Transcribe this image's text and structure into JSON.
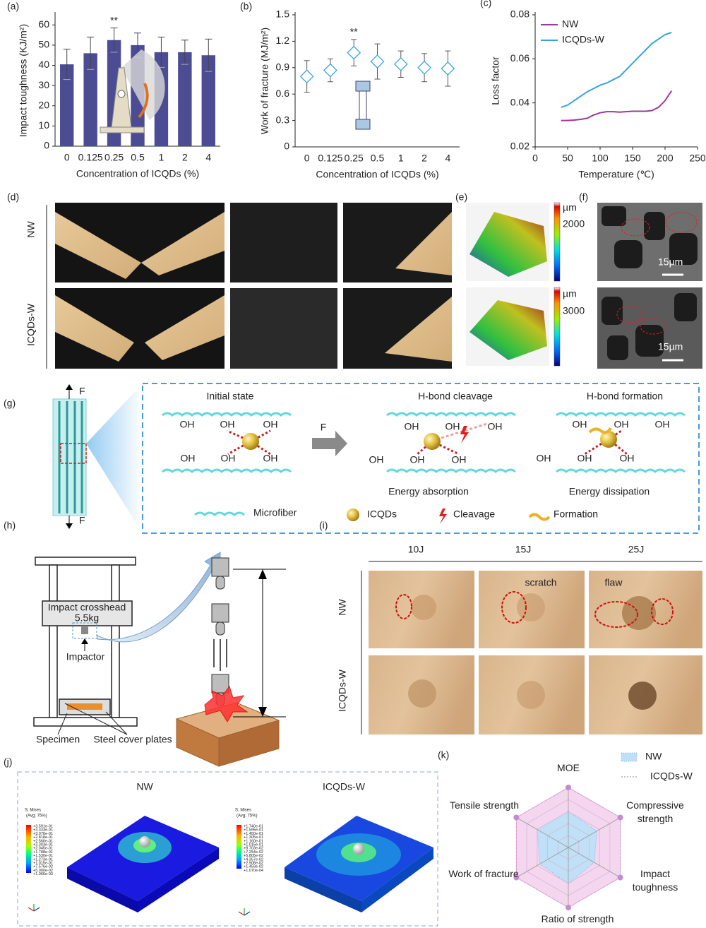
{
  "chart_data": [
    {
      "type": "bar",
      "panel": "(a)",
      "xlabel": "Concentration of ICQDs (%)",
      "ylabel": "Impact toughness (KJ/m²)",
      "categories": [
        "0",
        "0.125",
        "0.25",
        "0.5",
        "1",
        "2",
        "4"
      ],
      "values": [
        40.5,
        46,
        52.5,
        50,
        46.5,
        46.5,
        45
      ],
      "errors": [
        7.5,
        8,
        6,
        6,
        7.5,
        6,
        8
      ],
      "color": "#4b4c94",
      "ylim": [
        0,
        65
      ],
      "yticks": [
        0,
        10,
        20,
        30,
        40,
        50,
        60
      ],
      "annotations": [
        {
          "text": "**",
          "x": "0.25"
        }
      ]
    },
    {
      "type": "point",
      "panel": "(b)",
      "xlabel": "Concentration of ICQDs (%)",
      "ylabel": "Work of fracture (MJ/m²)",
      "categories": [
        "0",
        "0.125",
        "0.25",
        "0.5",
        "1",
        "2",
        "4"
      ],
      "values": [
        0.8,
        0.87,
        1.07,
        0.97,
        0.94,
        0.9,
        0.89
      ],
      "errors": [
        0.18,
        0.13,
        0.15,
        0.2,
        0.15,
        0.16,
        0.2
      ],
      "color": "#3aa6d8",
      "ylim": [
        0,
        1.5
      ],
      "yticks": [
        0,
        0.3,
        0.6,
        0.9,
        1.2,
        1.5
      ],
      "annotations": [
        {
          "text": "**",
          "x": "0.25"
        }
      ]
    },
    {
      "type": "line",
      "panel": "(c)",
      "xlabel": "Temperature (℃)",
      "ylabel": "Loss factor",
      "x": [
        40,
        50,
        60,
        70,
        80,
        90,
        100,
        110,
        120,
        130,
        140,
        150,
        160,
        170,
        180,
        190,
        200,
        210
      ],
      "series": [
        {
          "name": "NW",
          "color": "#a3359a",
          "values": [
            0.032,
            0.032,
            0.0322,
            0.0325,
            0.033,
            0.0345,
            0.0355,
            0.036,
            0.036,
            0.0358,
            0.036,
            0.0362,
            0.0362,
            0.0362,
            0.0365,
            0.038,
            0.041,
            0.0455
          ]
        },
        {
          "name": "ICQDs-W",
          "color": "#3ba2d8",
          "values": [
            0.038,
            0.039,
            0.041,
            0.043,
            0.045,
            0.0465,
            0.048,
            0.049,
            0.0505,
            0.052,
            0.055,
            0.058,
            0.061,
            0.064,
            0.067,
            0.069,
            0.071,
            0.072
          ]
        }
      ],
      "xlim": [
        0,
        250
      ],
      "xticks": [
        0,
        50,
        100,
        150,
        200,
        250
      ],
      "ylim": [
        0.02,
        0.08
      ],
      "yticks": [
        0.02,
        0.04,
        0.06,
        0.08
      ],
      "legend": "upper left"
    },
    {
      "type": "radar",
      "panel": "(k)",
      "axes": [
        "MOE",
        "Compressive strength",
        "Impact toughness",
        "Ratio of strength to weight",
        "Work of fracture",
        "Tensile strength"
      ],
      "series": [
        {
          "name": "ICQDs-W",
          "color": "#f4d6ee",
          "marker_color": "#c58ad0",
          "values": [
            1,
            1,
            1,
            1,
            1,
            1
          ]
        },
        {
          "name": "NW",
          "color": "#bfe0f6",
          "values": [
            0.6,
            0.55,
            0.5,
            0.6,
            0.55,
            0.6
          ]
        }
      ],
      "rlim": [
        0,
        1
      ],
      "legend": "upper right"
    }
  ],
  "panels": {
    "d": {
      "label": "(d)",
      "rows": [
        "NW",
        "ICQDs-W"
      ]
    },
    "e": {
      "label": "(e)",
      "unit": "µm",
      "scales": [
        2000,
        3000
      ]
    },
    "f": {
      "label": "(f)",
      "scale_bar": "15µm"
    },
    "g": {
      "label": "(g)",
      "force": "F",
      "oh": "OH",
      "stages": [
        "Initial state",
        "H-bond cleavage",
        "H-bond formation"
      ],
      "captions": [
        "Energy absorption",
        "Energy dissipation"
      ],
      "legend": [
        "Microfiber",
        "ICQDs",
        "Cleavage",
        "Formation"
      ]
    },
    "h": {
      "label": "(h)",
      "crosshead": "Impact crosshead",
      "mass": "5.5kg",
      "impactor": "Impactor",
      "specimen": "Specimen",
      "plates": "Steel cover plates"
    },
    "i": {
      "label": "(i)",
      "energies": [
        "10J",
        "15J",
        "25J"
      ],
      "rows": [
        "NW",
        "ICQDs-W"
      ],
      "notes": [
        "scratch",
        "flaw"
      ]
    },
    "j": {
      "label": "(j)",
      "titles": [
        "NW",
        "ICQDs-W"
      ],
      "legend_title": "S, Mises",
      "legend_avg": "(Avg: 75%)",
      "legend_values": [
        [
          "+3.591e-01",
          "+3.333e-01",
          "+3.076e-01",
          "+2.818e-01",
          "+2.560e-01",
          "+2.303e-01",
          "+2.045e-01",
          "+1.788e-01",
          "+1.530e-01",
          "+1.273e-01",
          "+1.015e-01",
          "+7.576e-02",
          "+5.000e-02",
          "+1.066e-03"
        ],
        [
          "+1.740e-01",
          "+1.595e-01",
          "+1.450e-01",
          "+1.305e-01",
          "+1.160e-01",
          "+1.015e-01",
          "+8.703e-02",
          "+7.254e-02",
          "+5.805e-02",
          "+4.357e-02",
          "+2.908e-02",
          "+1.459e-02",
          "+1.070e-04"
        ]
      ]
    }
  }
}
